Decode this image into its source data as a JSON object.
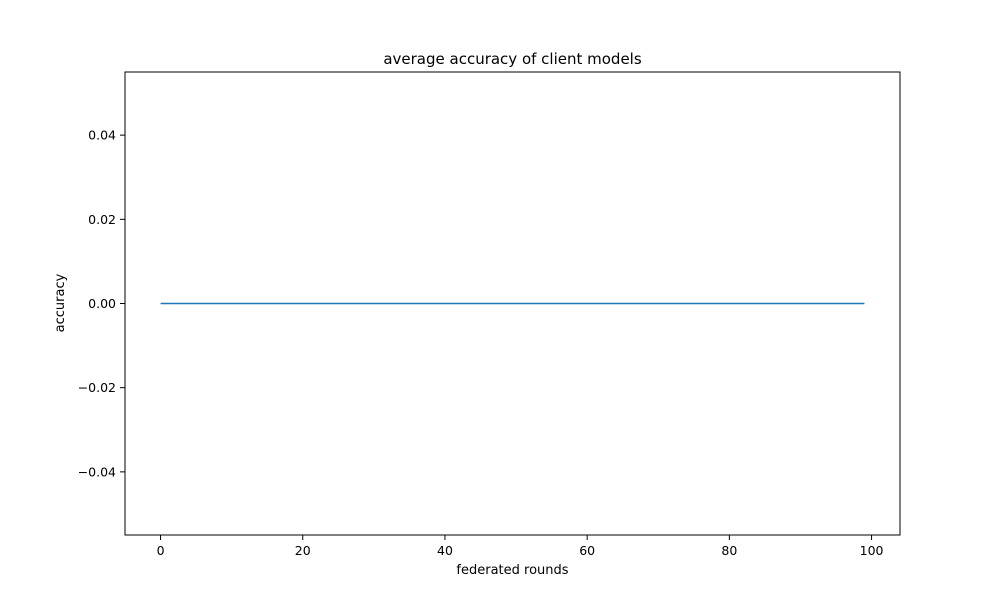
{
  "chart_data": {
    "type": "line",
    "title": "average accuracy of client models",
    "xlabel": "federated rounds",
    "ylabel": "accuracy",
    "xlim": [
      -5,
      104
    ],
    "ylim": [
      -0.055,
      0.055
    ],
    "xticks": [
      0,
      20,
      40,
      60,
      80,
      100
    ],
    "xtick_labels": [
      "0",
      "20",
      "40",
      "60",
      "80",
      "100"
    ],
    "yticks": [
      -0.04,
      -0.02,
      0.0,
      0.02,
      0.04
    ],
    "ytick_labels": [
      "−0.04",
      "−0.02",
      "0.00",
      "0.02",
      "0.04"
    ],
    "grid": false,
    "legend": false,
    "series": [
      {
        "color": "#1f77b4",
        "x": [
          0,
          99
        ],
        "y": [
          0.0,
          0.0
        ]
      }
    ]
  }
}
